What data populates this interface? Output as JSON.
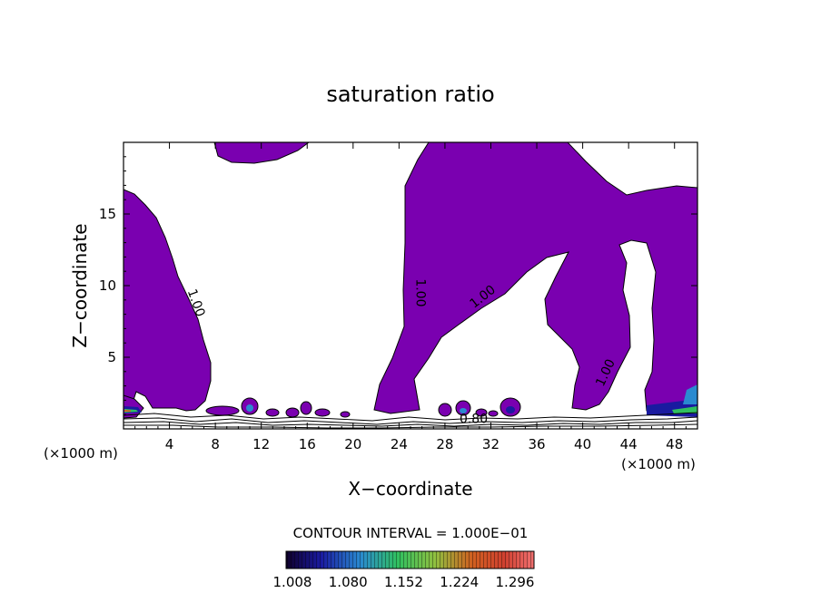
{
  "chart_data": {
    "type": "contour",
    "title": "saturation ratio",
    "xlabel": "X−coordinate",
    "ylabel": "Z−coordinate",
    "x_unit_label": "(×1000 m)",
    "y_unit_label": "(×1000 m)",
    "xlim": [
      0,
      50
    ],
    "ylim": [
      0,
      20
    ],
    "x_ticks": [
      4,
      8,
      12,
      16,
      20,
      24,
      28,
      32,
      36,
      40,
      44,
      48
    ],
    "y_ticks": [
      5,
      10,
      15
    ],
    "contour_interval_text": "CONTOUR INTERVAL = 1.000E−01",
    "contour_labels": [
      {
        "text": "1.00",
        "x": 6,
        "z": 8.7
      },
      {
        "text": "1.00",
        "x": 25.5,
        "z": 9.5
      },
      {
        "text": "1.00",
        "x": 31.5,
        "z": 9.0
      },
      {
        "text": "1.00",
        "x": 42.3,
        "z": 3.8
      },
      {
        "text": "0.80",
        "x": 30.5,
        "z": 0.4
      }
    ],
    "fill_color": "#7a00b0",
    "colorbar": {
      "labels": [
        "1.008",
        "1.080",
        "1.152",
        "1.224",
        "1.296"
      ],
      "colors": [
        "#10002a",
        "#1a1aa0",
        "#2a8ad0",
        "#30c060",
        "#a0c040",
        "#d06020",
        "#d04030",
        "#f07070"
      ]
    }
  }
}
